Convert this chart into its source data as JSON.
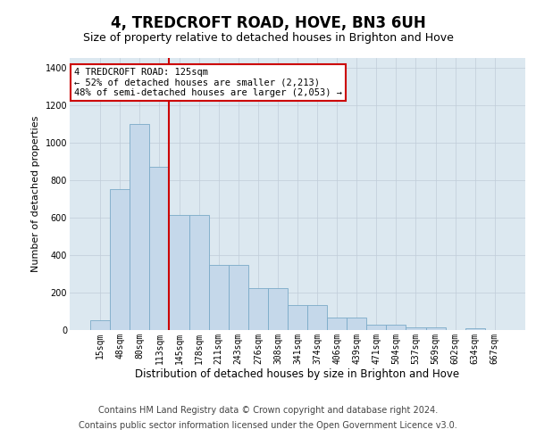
{
  "title": "4, TREDCROFT ROAD, HOVE, BN3 6UH",
  "subtitle": "Size of property relative to detached houses in Brighton and Hove",
  "xlabel": "Distribution of detached houses by size in Brighton and Hove",
  "ylabel": "Number of detached properties",
  "categories": [
    "15sqm",
    "48sqm",
    "80sqm",
    "113sqm",
    "145sqm",
    "178sqm",
    "211sqm",
    "243sqm",
    "276sqm",
    "308sqm",
    "341sqm",
    "374sqm",
    "406sqm",
    "439sqm",
    "471sqm",
    "504sqm",
    "537sqm",
    "569sqm",
    "602sqm",
    "634sqm",
    "667sqm"
  ],
  "values": [
    50,
    750,
    1100,
    870,
    615,
    615,
    345,
    345,
    225,
    225,
    135,
    135,
    65,
    65,
    30,
    30,
    15,
    15,
    0,
    10,
    0
  ],
  "bar_color": "#c5d8ea",
  "bar_edge_color": "#7aaac8",
  "vline_color": "#cc0000",
  "vline_x": 3,
  "annotation_text": "4 TREDCROFT ROAD: 125sqm\n← 52% of detached houses are smaller (2,213)\n48% of semi-detached houses are larger (2,053) →",
  "annotation_box_facecolor": "#ffffff",
  "annotation_box_edgecolor": "#cc0000",
  "ylim": [
    0,
    1450
  ],
  "yticks": [
    0,
    200,
    400,
    600,
    800,
    1000,
    1200,
    1400
  ],
  "footer_line1": "Contains HM Land Registry data © Crown copyright and database right 2024.",
  "footer_line2": "Contains public sector information licensed under the Open Government Licence v3.0.",
  "bg_color": "#dce8f0",
  "title_fontsize": 12,
  "subtitle_fontsize": 9,
  "xlabel_fontsize": 8.5,
  "ylabel_fontsize": 8,
  "tick_fontsize": 7,
  "footer_fontsize": 7,
  "ann_fontsize": 7.5
}
